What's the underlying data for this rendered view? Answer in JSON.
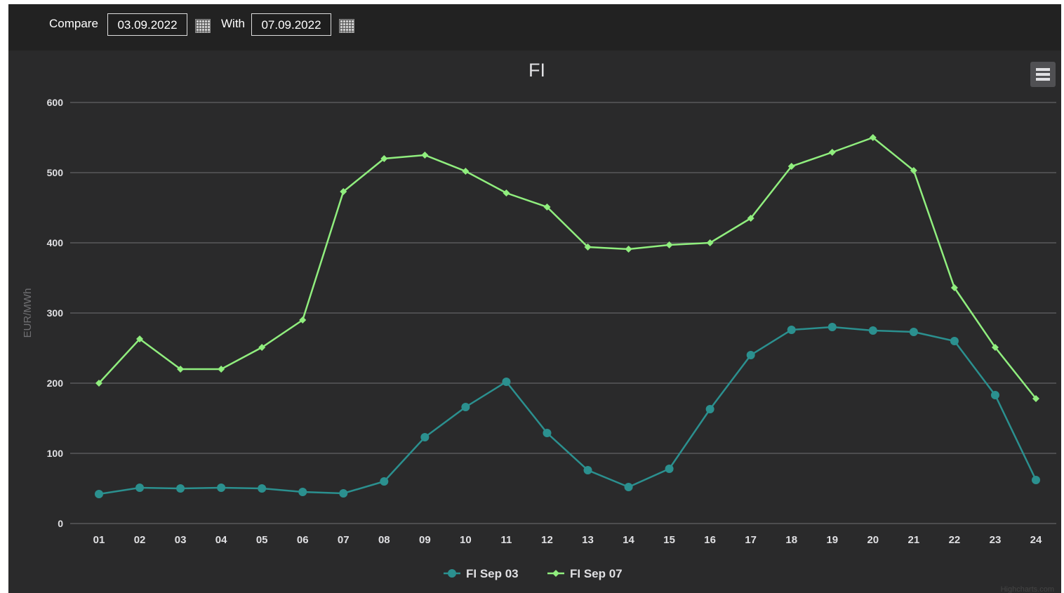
{
  "controls": {
    "compare_label": "Compare",
    "compare_date": "03.09.2022",
    "with_label": "With",
    "with_date": "07.09.2022"
  },
  "chart_data": {
    "type": "line",
    "title": "FI",
    "y_label": "EUR/MWh",
    "credits": "Highcharts.com",
    "categories": [
      "01",
      "02",
      "03",
      "04",
      "05",
      "06",
      "07",
      "08",
      "09",
      "10",
      "11",
      "12",
      "13",
      "14",
      "15",
      "16",
      "17",
      "18",
      "19",
      "20",
      "21",
      "22",
      "23",
      "24"
    ],
    "series": [
      {
        "name": "FI Sep 03",
        "color": "#2b908f",
        "marker": "circle",
        "values": [
          42,
          51,
          50,
          51,
          50,
          45,
          43,
          60,
          123,
          166,
          202,
          129,
          76,
          52,
          78,
          163,
          240,
          276,
          280,
          275,
          273,
          260,
          183,
          62
        ]
      },
      {
        "name": "FI Sep 07",
        "color": "#90ee7e",
        "marker": "diamond",
        "values": [
          200,
          263,
          220,
          220,
          251,
          290,
          473,
          520,
          525,
          502,
          471,
          451,
          394,
          391,
          397,
          400,
          435,
          509,
          529,
          550,
          503,
          336,
          251,
          178
        ]
      }
    ],
    "ylim": [
      0,
      600
    ],
    "yticks": [
      0,
      100,
      200,
      300,
      400,
      500,
      600
    ],
    "grid": true,
    "legend": "bottom"
  }
}
